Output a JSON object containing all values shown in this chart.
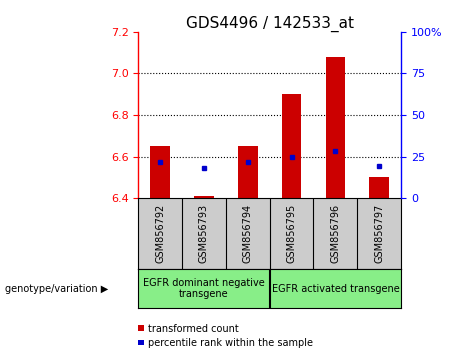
{
  "title": "GDS4496 / 142533_at",
  "samples": [
    "GSM856792",
    "GSM856793",
    "GSM856794",
    "GSM856795",
    "GSM856796",
    "GSM856797"
  ],
  "bar_bottoms": [
    6.4,
    6.4,
    6.4,
    6.4,
    6.4,
    6.4
  ],
  "bar_tops": [
    6.65,
    6.41,
    6.65,
    6.9,
    7.08,
    6.5
  ],
  "percentile_values": [
    6.575,
    6.545,
    6.575,
    6.6,
    6.625,
    6.555
  ],
  "ylim": [
    6.4,
    7.2
  ],
  "yticks_left": [
    6.4,
    6.6,
    6.8,
    7.0,
    7.2
  ],
  "yticks_right": [
    0,
    25,
    50,
    75,
    100
  ],
  "bar_color": "#cc0000",
  "percentile_color": "#0000cc",
  "group1_label": "EGFR dominant negative\ntransgene",
  "group2_label": "EGFR activated transgene",
  "group1_samples": [
    0,
    1,
    2
  ],
  "group2_samples": [
    3,
    4,
    5
  ],
  "genotype_label": "genotype/variation",
  "legend_bar_label": "transformed count",
  "legend_percentile_label": "percentile rank within the sample",
  "dotted_lines": [
    6.6,
    6.8,
    7.0
  ],
  "bg_xlabel": "#cccccc",
  "bg_group": "#88ee88",
  "title_fontsize": 11,
  "tick_fontsize": 8,
  "label_fontsize": 7,
  "bar_width": 0.45
}
